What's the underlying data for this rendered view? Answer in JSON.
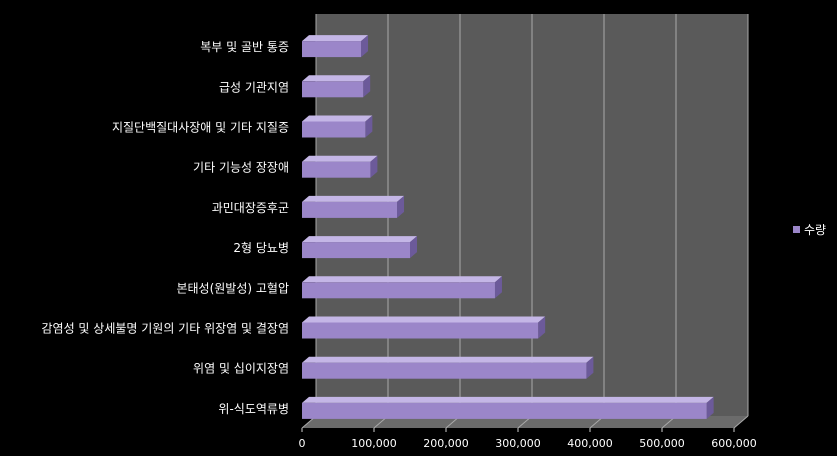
{
  "chart_data": {
    "type": "bar",
    "orientation": "horizontal",
    "style": "3d",
    "categories": [
      "복부 및 골반 통증",
      "급성 기관지염",
      "지질단백질대사장애 및 기타 지질증",
      "기타 기능성 장장애",
      "과민대장증후군",
      "2형 당뇨병",
      "본태성(원발성) 고혈압",
      "감염성 및 상세불명 기원의 기타 위장염 및 결장염",
      "위염 및 십이지장염",
      "위-식도역류병"
    ],
    "series": [
      {
        "name": "수량",
        "color": "#9b86c9",
        "values": [
          82000,
          85000,
          88000,
          95000,
          132000,
          150000,
          268000,
          328000,
          395000,
          562000
        ]
      }
    ],
    "xlim": [
      0,
      600000
    ],
    "xticks": [
      "0",
      "100,000",
      "200,000",
      "300,000",
      "400,000",
      "500,000",
      "600,000"
    ],
    "grid": true,
    "legend_position": "right",
    "colors": {
      "background": "#000000",
      "plot_back": "#5a5a5a",
      "plot_floor": "#6b6b6b",
      "gridline": "#aaaaaa",
      "text": "#ffffff"
    }
  }
}
